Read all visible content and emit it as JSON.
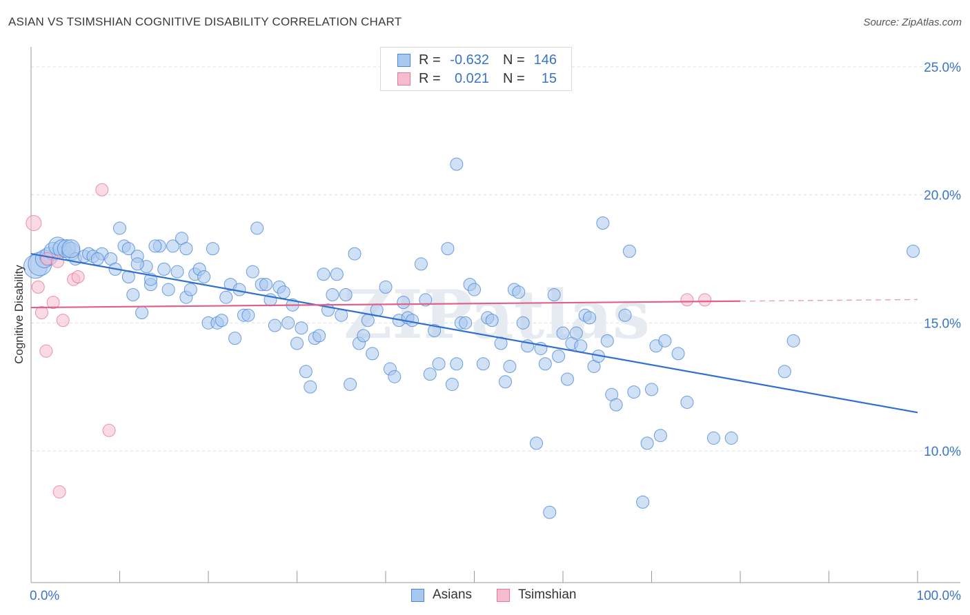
{
  "header": {
    "title": "ASIAN VS TSIMSHIAN COGNITIVE DISABILITY CORRELATION CHART",
    "source": "Source: ZipAtlas.com"
  },
  "colors": {
    "asians": "#4a86d8",
    "asians_fill": "#a9c8ef",
    "tsimshian": "#e8769a",
    "tsimshian_fill": "#f5bccd",
    "tick_label": "#3a74c8"
  },
  "stats_legend": {
    "asians": {
      "r_label": "R =",
      "r_value": "-0.632",
      "n_label": "N =",
      "n_value": "146"
    },
    "tsimshian": {
      "r_label": "R =",
      "r_value": "0.021",
      "n_label": "N =",
      "n_value": "15"
    }
  },
  "watermark": "ZIPatlas",
  "chart_data": {
    "type": "scatter",
    "title": "ASIAN VS TSIMSHIAN COGNITIVE DISABILITY CORRELATION CHART",
    "xlabel": "",
    "ylabel": "Cognitive Disability",
    "xlim": [
      0,
      100
    ],
    "ylim": [
      5,
      25.5
    ],
    "x_tick_labels": [
      "0.0%",
      "100.0%"
    ],
    "y_ticks": [
      10,
      15,
      20,
      25
    ],
    "y_tick_labels": [
      "10.0%",
      "15.0%",
      "20.0%",
      "25.0%"
    ],
    "grid": true,
    "legend_position": "bottom",
    "series": [
      {
        "name": "Asians",
        "trend": {
          "x": [
            0,
            100
          ],
          "y": [
            17.7,
            11.5
          ]
        },
        "points": [
          [
            0.5,
            17.2
          ],
          [
            1.0,
            17.3
          ],
          [
            1.5,
            17.5
          ],
          [
            2.0,
            17.6
          ],
          [
            2.5,
            17.8
          ],
          [
            3.0,
            18.0
          ],
          [
            3.5,
            17.9
          ],
          [
            4.0,
            17.9
          ],
          [
            4.5,
            17.8
          ],
          [
            5.0,
            17.5
          ],
          [
            6.0,
            17.6
          ],
          [
            6.5,
            17.7
          ],
          [
            7.0,
            17.6
          ],
          [
            8.0,
            17.7
          ],
          [
            7.5,
            17.5
          ],
          [
            9.0,
            17.5
          ],
          [
            9.5,
            17.1
          ],
          [
            10.0,
            18.7
          ],
          [
            10.5,
            18.0
          ],
          [
            11.0,
            17.9
          ],
          [
            11.0,
            16.8
          ],
          [
            11.5,
            16.1
          ],
          [
            12.0,
            17.6
          ],
          [
            12.5,
            15.4
          ],
          [
            13.0,
            17.2
          ],
          [
            13.5,
            16.5
          ],
          [
            13.5,
            16.7
          ],
          [
            14.5,
            18.0
          ],
          [
            15.0,
            17.1
          ],
          [
            15.5,
            16.3
          ],
          [
            16.0,
            18.0
          ],
          [
            16.5,
            17.0
          ],
          [
            17.0,
            18.3
          ],
          [
            17.5,
            17.9
          ],
          [
            17.5,
            16.0
          ],
          [
            18.0,
            16.3
          ],
          [
            18.5,
            16.9
          ],
          [
            19.0,
            17.1
          ],
          [
            19.5,
            16.8
          ],
          [
            20.0,
            15.0
          ],
          [
            20.5,
            17.9
          ],
          [
            21.0,
            15.0
          ],
          [
            21.5,
            15.1
          ],
          [
            22.0,
            16.0
          ],
          [
            22.5,
            16.5
          ],
          [
            23.0,
            14.4
          ],
          [
            23.5,
            16.3
          ],
          [
            24.0,
            15.3
          ],
          [
            24.5,
            15.3
          ],
          [
            25.0,
            17.0
          ],
          [
            25.5,
            18.7
          ],
          [
            26.0,
            16.5
          ],
          [
            26.5,
            16.5
          ],
          [
            27.0,
            15.9
          ],
          [
            27.5,
            14.9
          ],
          [
            28.0,
            16.4
          ],
          [
            28.5,
            16.2
          ],
          [
            29.0,
            15.0
          ],
          [
            29.5,
            15.7
          ],
          [
            30.0,
            14.2
          ],
          [
            30.5,
            14.8
          ],
          [
            31.0,
            13.1
          ],
          [
            31.5,
            12.5
          ],
          [
            32.0,
            14.4
          ],
          [
            32.5,
            14.5
          ],
          [
            33.0,
            16.9
          ],
          [
            33.5,
            15.5
          ],
          [
            34.0,
            16.1
          ],
          [
            34.5,
            16.9
          ],
          [
            35.0,
            15.3
          ],
          [
            35.5,
            16.1
          ],
          [
            36.0,
            12.6
          ],
          [
            36.5,
            17.7
          ],
          [
            37.0,
            14.2
          ],
          [
            37.5,
            14.5
          ],
          [
            38.0,
            15.1
          ],
          [
            38.5,
            13.8
          ],
          [
            39.0,
            15.5
          ],
          [
            40.0,
            16.4
          ],
          [
            40.5,
            13.2
          ],
          [
            41.0,
            12.9
          ],
          [
            41.5,
            15.1
          ],
          [
            42.0,
            15.8
          ],
          [
            42.5,
            15.2
          ],
          [
            43.0,
            15.1
          ],
          [
            44.0,
            17.3
          ],
          [
            44.5,
            15.9
          ],
          [
            45.0,
            13.0
          ],
          [
            45.5,
            14.7
          ],
          [
            46.0,
            13.4
          ],
          [
            47.0,
            17.9
          ],
          [
            47.5,
            12.6
          ],
          [
            48.0,
            13.4
          ],
          [
            48.5,
            15.0
          ],
          [
            49.0,
            15.0
          ],
          [
            49.5,
            16.5
          ],
          [
            50.0,
            16.3
          ],
          [
            51.0,
            13.4
          ],
          [
            51.5,
            15.2
          ],
          [
            52.0,
            15.1
          ],
          [
            53.0,
            14.2
          ],
          [
            53.5,
            12.7
          ],
          [
            54.0,
            13.3
          ],
          [
            54.5,
            16.3
          ],
          [
            55.0,
            16.2
          ],
          [
            55.5,
            15.0
          ],
          [
            56.0,
            14.1
          ],
          [
            57.0,
            10.3
          ],
          [
            57.5,
            14.0
          ],
          [
            58.0,
            13.4
          ],
          [
            58.5,
            7.6
          ],
          [
            59.0,
            16.1
          ],
          [
            59.5,
            13.7
          ],
          [
            60.0,
            14.6
          ],
          [
            60.5,
            12.8
          ],
          [
            61.0,
            14.2
          ],
          [
            61.5,
            14.6
          ],
          [
            62.0,
            14.1
          ],
          [
            62.5,
            15.3
          ],
          [
            63.0,
            15.2
          ],
          [
            63.5,
            13.3
          ],
          [
            64.0,
            13.7
          ],
          [
            64.5,
            18.9
          ],
          [
            65.0,
            14.3
          ],
          [
            65.5,
            12.2
          ],
          [
            66.0,
            11.8
          ],
          [
            67.0,
            15.3
          ],
          [
            67.5,
            17.8
          ],
          [
            68.0,
            12.3
          ],
          [
            69.0,
            8.0
          ],
          [
            69.5,
            10.3
          ],
          [
            70.0,
            12.4
          ],
          [
            70.5,
            14.1
          ],
          [
            71.0,
            10.6
          ],
          [
            71.5,
            14.3
          ],
          [
            73.0,
            13.8
          ],
          [
            74.0,
            11.9
          ],
          [
            77.0,
            10.5
          ],
          [
            79.0,
            10.5
          ],
          [
            85.0,
            13.1
          ],
          [
            86.0,
            14.3
          ],
          [
            99.5,
            17.8
          ],
          [
            48.0,
            21.2
          ],
          [
            14.0,
            18.0
          ],
          [
            4.5,
            17.9
          ],
          [
            12.0,
            17.3
          ]
        ]
      },
      {
        "name": "Tsimshian",
        "trend": {
          "x": [
            0,
            80
          ],
          "y": [
            15.6,
            15.85
          ]
        },
        "points": [
          [
            0.3,
            18.9
          ],
          [
            0.8,
            16.4
          ],
          [
            1.2,
            15.4
          ],
          [
            1.8,
            17.5
          ],
          [
            1.7,
            13.9
          ],
          [
            2.5,
            15.8
          ],
          [
            3.0,
            17.4
          ],
          [
            3.2,
            8.4
          ],
          [
            3.6,
            15.1
          ],
          [
            4.8,
            16.7
          ],
          [
            5.3,
            16.8
          ],
          [
            8.0,
            20.2
          ],
          [
            8.8,
            10.8
          ],
          [
            74.0,
            15.9
          ],
          [
            76.0,
            15.9
          ]
        ]
      }
    ]
  },
  "bottom_legend": {
    "asians": "Asians",
    "tsimshian": "Tsimshian"
  }
}
